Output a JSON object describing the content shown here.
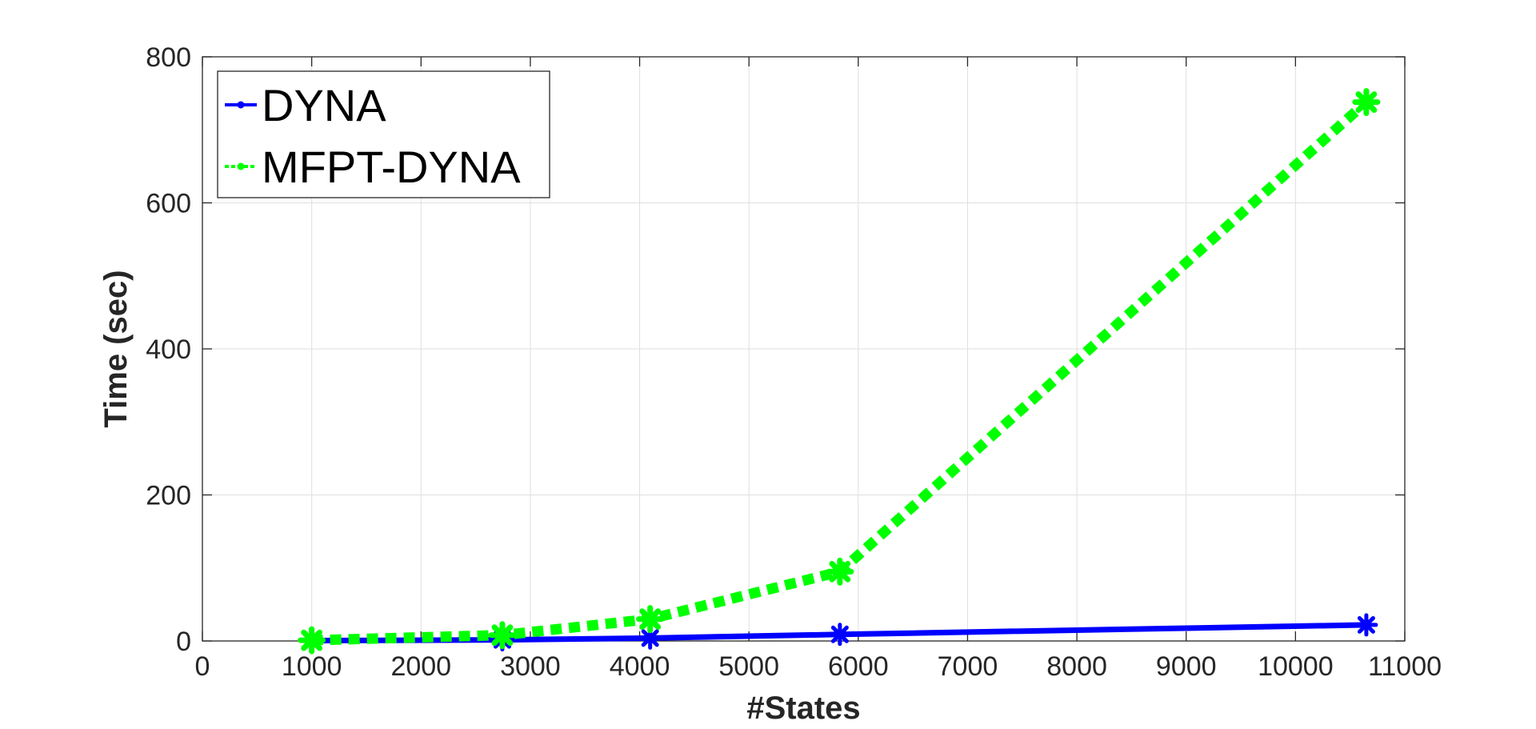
{
  "chart_data": {
    "type": "line",
    "title": "",
    "xlabel": "#States",
    "ylabel": "Time (sec)",
    "xlim": [
      0,
      11000
    ],
    "ylim": [
      0,
      800
    ],
    "xticks": [
      0,
      1000,
      2000,
      3000,
      4000,
      5000,
      6000,
      7000,
      8000,
      9000,
      10000,
      11000
    ],
    "yticks": [
      0,
      200,
      400,
      600,
      800
    ],
    "grid": true,
    "legend_position": "top-left",
    "series": [
      {
        "name": "DYNA",
        "color": "#0000ff",
        "line_style": "solid",
        "marker": "asterisk",
        "x": [
          1000,
          2744,
          4096,
          5832,
          10648
        ],
        "y": [
          0.5,
          1.5,
          4,
          9,
          22
        ]
      },
      {
        "name": "MFPT-DYNA",
        "color": "#00ff00",
        "line_style": "dotted",
        "marker": "asterisk",
        "x": [
          1000,
          2744,
          4096,
          5832,
          10648
        ],
        "y": [
          1,
          8,
          30,
          95,
          738
        ]
      }
    ]
  }
}
